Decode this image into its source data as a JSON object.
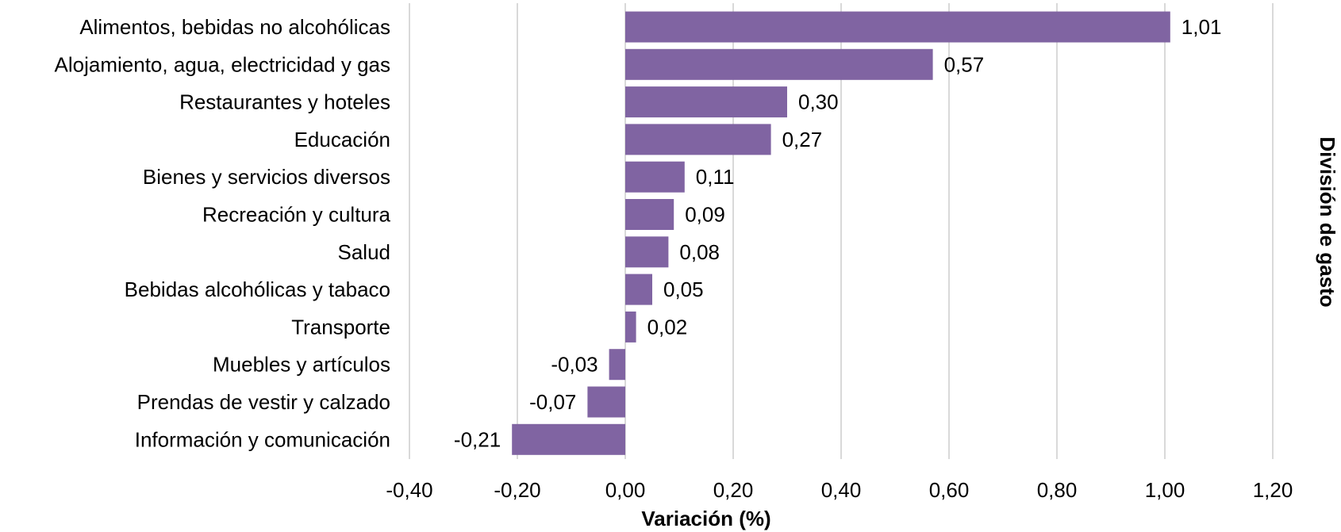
{
  "chart_data": {
    "type": "bar",
    "orientation": "horizontal",
    "categories": [
      "Alimentos, bebidas no alcohólicas",
      "Alojamiento, agua, electricidad y gas",
      "Restaurantes y hoteles",
      "Educación",
      "Bienes y servicios diversos",
      "Recreación y cultura",
      "Salud",
      "Bebidas alcohólicas y tabaco",
      "Transporte",
      "Muebles y artículos",
      "Prendas de vestir y calzado",
      "Información y comunicación"
    ],
    "values": [
      1.01,
      0.57,
      0.3,
      0.27,
      0.11,
      0.09,
      0.08,
      0.05,
      0.02,
      -0.03,
      -0.07,
      -0.21
    ],
    "data_labels": [
      "1,01",
      "0,57",
      "0,30",
      "0,27",
      "0,11",
      "0,09",
      "0,08",
      "0,05",
      "0,02",
      "-0,03",
      "-0,07",
      "-0,21"
    ],
    "xlim": [
      -0.4,
      1.2
    ],
    "x_ticks": [
      -0.4,
      -0.2,
      0.0,
      0.2,
      0.4,
      0.6,
      0.8,
      1.0,
      1.2
    ],
    "x_tick_labels": [
      "-0,40",
      "-0,20",
      "0,00",
      "0,20",
      "0,40",
      "0,60",
      "0,80",
      "1,00",
      "1,20"
    ],
    "xlabel": "Variación (%)",
    "ylabel": "División de gasto",
    "grid": "vertical",
    "bar_color": "#8064a2"
  }
}
